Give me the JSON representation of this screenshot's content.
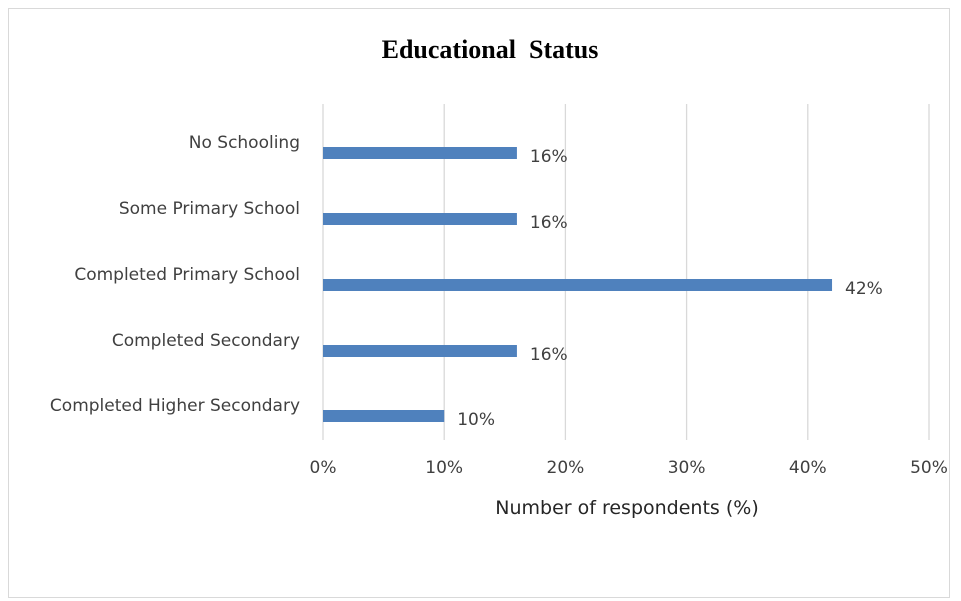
{
  "chart_data": {
    "type": "bar",
    "orientation": "horizontal",
    "title": "Educational  Status",
    "xlabel": "Number of respondents (%)",
    "ylabel": "",
    "categories": [
      "No Schooling",
      "Some Primary School",
      "Completed Primary School",
      "Completed Secondary",
      "Completed Higher Secondary"
    ],
    "values": [
      16,
      16,
      42,
      16,
      10
    ],
    "data_labels": [
      "16%",
      "16%",
      "42%",
      "16%",
      "10%"
    ],
    "xlim": [
      0,
      50
    ],
    "ticks": [
      "0%",
      "10%",
      "20%",
      "30%",
      "40%",
      "50%"
    ],
    "grid": true,
    "legend": "none",
    "bar_color": "#4f81bd"
  }
}
